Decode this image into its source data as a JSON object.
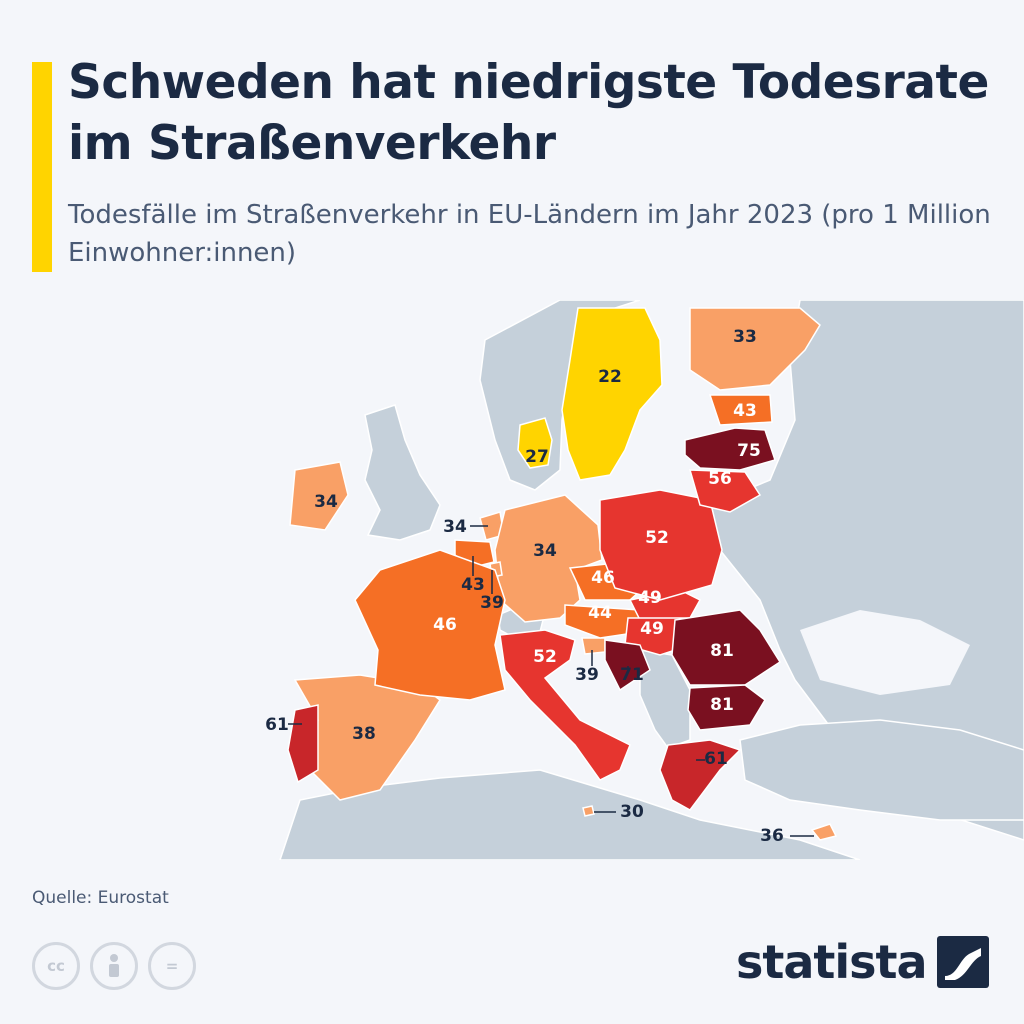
{
  "header": {
    "title": "Schweden hat niedrigste Todesrate im Straßenverkehr",
    "subtitle": "Todesfälle im Straßenverkehr in EU-Ländern im Jahr 2023 (pro 1 Million Einwohner:innen)"
  },
  "colors": {
    "background": "#f4f6fa",
    "accent": "#ffd400",
    "non_eu_land": "#c5d0da",
    "title_text": "#1b2a43",
    "scale": {
      "lowest": "#ffd400",
      "low": "#f9a066",
      "medium": "#f56f25",
      "high": "#e6352f",
      "higher": "#c8262a",
      "highest": "#7a1020"
    }
  },
  "chart_data": {
    "type": "choropleth",
    "unit": "pro 1 Million Einwohner:innen",
    "regions": [
      {
        "country": "Schweden",
        "value": 22
      },
      {
        "country": "Dänemark",
        "value": 27
      },
      {
        "country": "Malta",
        "value": 30
      },
      {
        "country": "Finnland",
        "value": 33
      },
      {
        "country": "Irland",
        "value": 34
      },
      {
        "country": "Niederlande",
        "value": 34
      },
      {
        "country": "Deutschland",
        "value": 34
      },
      {
        "country": "Zypern",
        "value": 36
      },
      {
        "country": "Spanien",
        "value": 38
      },
      {
        "country": "Luxemburg",
        "value": 39
      },
      {
        "country": "Slowenien",
        "value": 39
      },
      {
        "country": "Estland",
        "value": 43
      },
      {
        "country": "Belgien",
        "value": 43
      },
      {
        "country": "Österreich",
        "value": 44
      },
      {
        "country": "Frankreich",
        "value": 46
      },
      {
        "country": "Tschechien",
        "value": 46
      },
      {
        "country": "Slowakei",
        "value": 49
      },
      {
        "country": "Ungarn",
        "value": 49
      },
      {
        "country": "Polen",
        "value": 52
      },
      {
        "country": "Italien",
        "value": 52
      },
      {
        "country": "Litauen",
        "value": 56
      },
      {
        "country": "Portugal",
        "value": 61
      },
      {
        "country": "Griechenland",
        "value": 61
      },
      {
        "country": "Kroatien",
        "value": 71
      },
      {
        "country": "Lettland",
        "value": 75
      },
      {
        "country": "Rumänien",
        "value": 81
      },
      {
        "country": "Bulgarien",
        "value": 81
      }
    ]
  },
  "footer": {
    "source": "Quelle: Eurostat",
    "license_icons": [
      "cc",
      "person-icon",
      "equals-icon"
    ],
    "license_cc_text": "cc",
    "license_eq_text": "=",
    "brand": "statista"
  }
}
